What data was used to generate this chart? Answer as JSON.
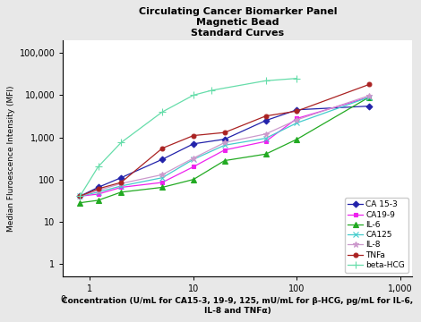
{
  "title": "Circulating Cancer Biomarker Panel\nMagnetic Bead\nStandard Curves",
  "xlabel": "Concentration (U/mL for CA15-3, 19-9, 125, mU/mL for β-HCG, pg/mL for IL-6,\nIL-8 and TNFα)",
  "ylabel": "Median Fluroescence Intensity (MFI)",
  "series": [
    {
      "label": "CA 15-3",
      "color": "#2222AA",
      "marker": "D",
      "markersize": 3.5,
      "x": [
        0.8,
        1.2,
        2.0,
        5.0,
        10.0,
        20.0,
        50.0,
        100.0,
        500.0
      ],
      "y": [
        40,
        65,
        110,
        300,
        700,
        900,
        2500,
        4500,
        5500
      ]
    },
    {
      "label": "CA19-9",
      "color": "#EE22EE",
      "marker": "s",
      "markersize": 3.5,
      "x": [
        0.8,
        1.2,
        2.0,
        5.0,
        10.0,
        20.0,
        50.0,
        100.0,
        500.0
      ],
      "y": [
        40,
        45,
        65,
        85,
        200,
        500,
        800,
        2800,
        9000
      ]
    },
    {
      "label": "IL-6",
      "color": "#22AA22",
      "marker": "^",
      "markersize": 4.5,
      "x": [
        0.8,
        1.2,
        2.0,
        5.0,
        10.0,
        20.0,
        50.0,
        100.0,
        500.0
      ],
      "y": [
        28,
        32,
        50,
        65,
        100,
        280,
        400,
        900,
        9000
      ]
    },
    {
      "label": "CA125",
      "color": "#44CCCC",
      "marker": "x",
      "markersize": 5,
      "x": [
        0.8,
        1.2,
        2.0,
        5.0,
        10.0,
        20.0,
        50.0,
        100.0,
        500.0
      ],
      "y": [
        40,
        50,
        70,
        110,
        300,
        650,
        950,
        2200,
        9000
      ]
    },
    {
      "label": "IL-8",
      "color": "#CC99CC",
      "marker": "*",
      "markersize": 5,
      "x": [
        0.8,
        1.2,
        2.0,
        5.0,
        10.0,
        20.0,
        50.0,
        100.0,
        500.0
      ],
      "y": [
        40,
        55,
        80,
        130,
        320,
        750,
        1200,
        2600,
        9800
      ]
    },
    {
      "label": "TNFa",
      "color": "#AA2222",
      "marker": "o",
      "markersize": 3.5,
      "x": [
        0.8,
        1.2,
        2.0,
        5.0,
        10.0,
        20.0,
        50.0,
        100.0,
        500.0
      ],
      "y": [
        40,
        60,
        85,
        550,
        1100,
        1300,
        3200,
        4200,
        18000
      ]
    },
    {
      "label": "beta-HCG",
      "color": "#66DDAA",
      "marker": "+",
      "markersize": 6,
      "x": [
        0.8,
        1.2,
        2.0,
        5.0,
        10.0,
        15.0,
        50.0,
        100.0
      ],
      "y": [
        40,
        200,
        750,
        4000,
        10000,
        13000,
        22000,
        25000
      ]
    }
  ],
  "xlim_log": [
    0.55,
    1300
  ],
  "ylim_log": [
    0.5,
    200000
  ],
  "xticks": [
    1,
    10,
    100,
    1000
  ],
  "xtick_labels": [
    "1",
    "10",
    "100",
    "1,000"
  ],
  "x_zero_label": "0",
  "yticks": [
    1,
    10,
    100,
    1000,
    10000,
    100000
  ],
  "ytick_labels": [
    "1",
    "10",
    "100",
    "1,000",
    "10,000",
    "100,000"
  ],
  "bg_color": "#e8e8e8",
  "plot_bg": "#ffffff",
  "title_fontsize": 8,
  "label_fontsize": 6.5,
  "tick_fontsize": 7,
  "legend_fontsize": 6.5
}
